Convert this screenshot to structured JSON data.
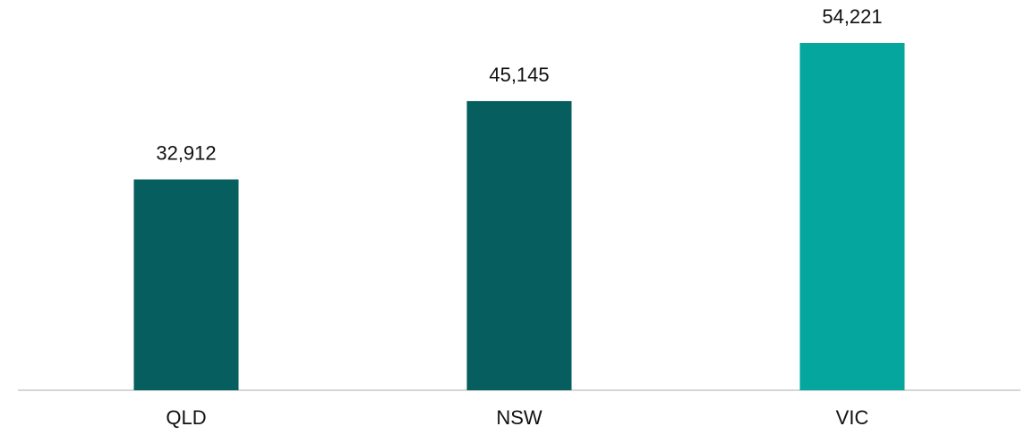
{
  "chart_data": {
    "type": "bar",
    "categories": [
      "QLD",
      "NSW",
      "VIC"
    ],
    "values": [
      32912,
      45145,
      54221
    ],
    "value_labels": [
      "32,912",
      "45,145",
      "54,221"
    ],
    "colors": [
      "#075e5f",
      "#075e5f",
      "#05a69e"
    ],
    "grid": false
  }
}
